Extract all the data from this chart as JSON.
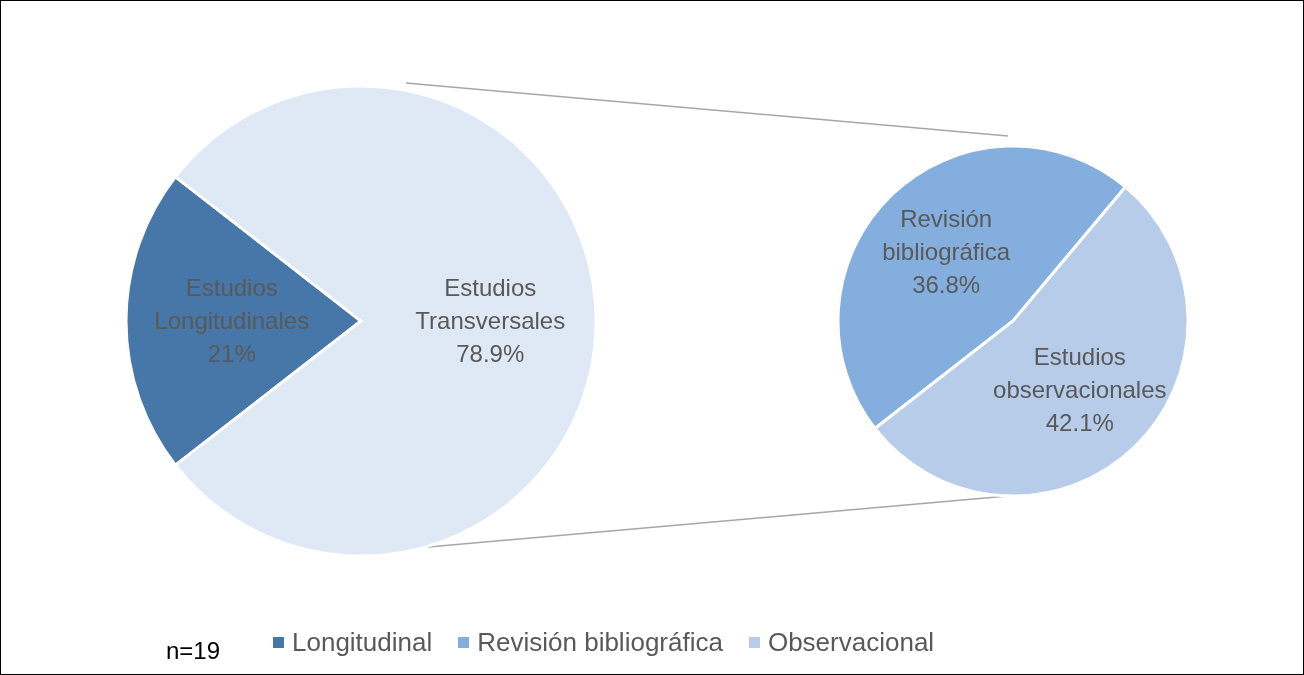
{
  "chart_data": [
    {
      "type": "pie",
      "categories": [
        "Longitudinal",
        null
      ],
      "values": [
        21,
        78.9
      ],
      "colors": [
        "#4677a8",
        "#dfe8f5"
      ],
      "value_labels": [
        "Estudios Longitudinales 21%",
        "Estudios Transversales 78.9%"
      ],
      "annotations": [
        "n=19"
      ],
      "legend": "bottom"
    },
    {
      "type": "pie",
      "categories": [
        "Revisión bibliográfica",
        "Observacional"
      ],
      "values": [
        36.8,
        42.1
      ],
      "colors": [
        "#84aedd",
        "#b7cce8"
      ],
      "value_labels": [
        "Revisión bibliográfica 36.8%",
        "Estudios observacionales 42.1%"
      ],
      "legend": "bottom"
    }
  ]
}
